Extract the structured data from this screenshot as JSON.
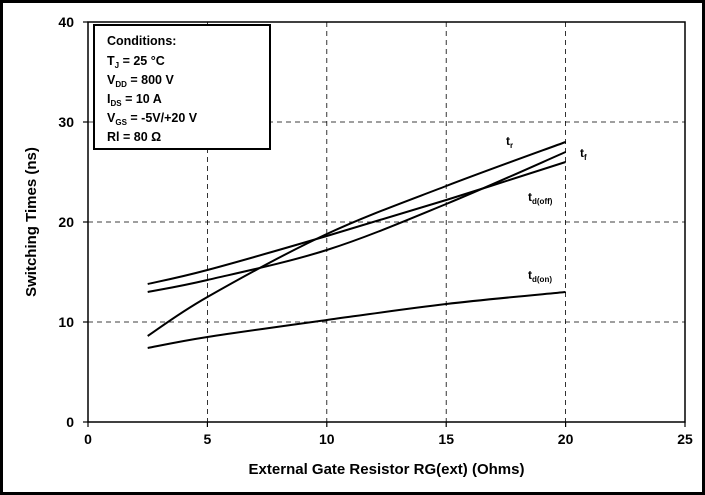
{
  "chart_data": {
    "type": "line",
    "title": "",
    "xlabel": "External Gate Resistor RG(ext) (Ohms)",
    "ylabel": "Switching Times (ns)",
    "xlim": [
      0,
      25
    ],
    "ylim": [
      0,
      40
    ],
    "xticks": [
      0,
      5,
      10,
      15,
      20,
      25
    ],
    "yticks": [
      0,
      10,
      20,
      30,
      40
    ],
    "grid": "dashed",
    "series": [
      {
        "name": "t_r",
        "label_main": "t",
        "label_sub": "r",
        "x": [
          2.5,
          5,
          10,
          15,
          20
        ],
        "y": [
          8.6,
          12.5,
          18.8,
          23.6,
          28.0
        ]
      },
      {
        "name": "t_f",
        "label_main": "t",
        "label_sub": "f",
        "x": [
          2.5,
          5,
          10,
          15,
          20
        ],
        "y": [
          13.0,
          14.2,
          17.2,
          21.8,
          27.0
        ]
      },
      {
        "name": "t_d(off)",
        "label_main": "t",
        "label_sub": "d(off)",
        "x": [
          2.5,
          5,
          10,
          15,
          20
        ],
        "y": [
          13.8,
          15.2,
          18.6,
          22.2,
          26.0
        ]
      },
      {
        "name": "t_d(on)",
        "label_main": "t",
        "label_sub": "d(on)",
        "x": [
          2.5,
          5,
          10,
          15,
          20
        ],
        "y": [
          7.4,
          8.5,
          10.2,
          11.8,
          13.0
        ]
      }
    ],
    "annotation": {
      "title": "Conditions:",
      "lines": [
        {
          "main": "T",
          "sub": "J",
          "rest": " = 25 °C"
        },
        {
          "main": "V",
          "sub": "DD",
          "rest": " = 800 V"
        },
        {
          "main": "I",
          "sub": "DS",
          "rest": " = 10 A"
        },
        {
          "main": "V",
          "sub": "GS",
          "rest": " = -5V/+20 V"
        },
        {
          "main": "Rl = 80 Ω",
          "sub": "",
          "rest": ""
        }
      ]
    }
  }
}
